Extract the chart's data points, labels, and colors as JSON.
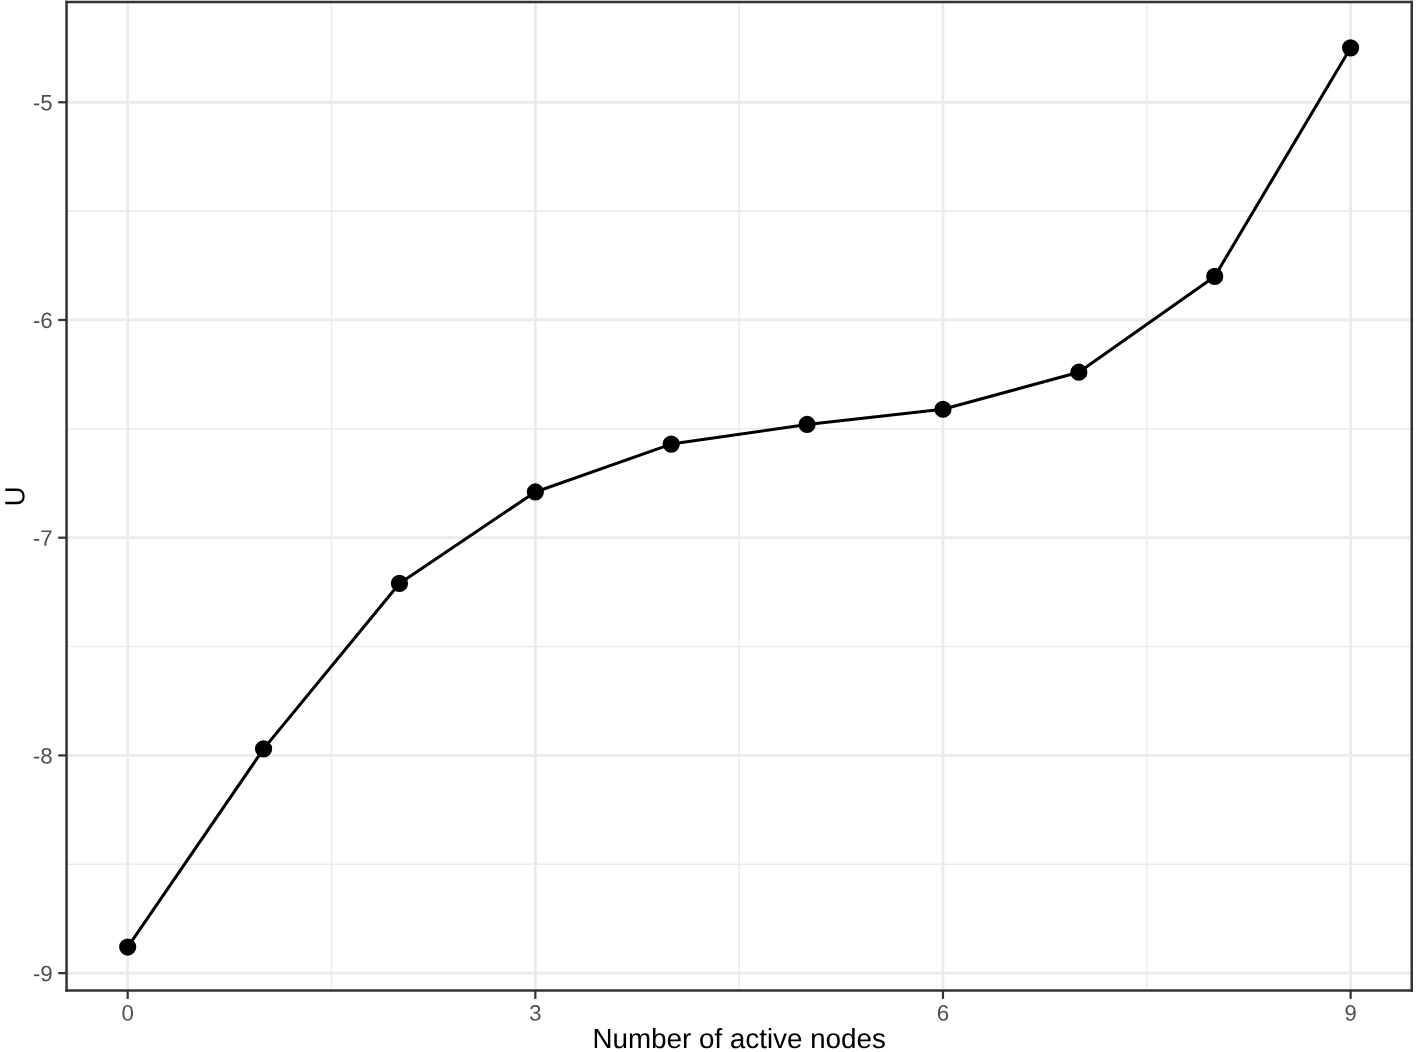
{
  "chart_data": {
    "type": "line",
    "xlabel": "Number of active nodes",
    "ylabel": "U",
    "x": [
      0,
      1,
      2,
      3,
      4,
      5,
      6,
      7,
      8,
      9
    ],
    "series": [
      {
        "color": "#000000",
        "values": [
          -8.88,
          -7.97,
          -7.21,
          -6.79,
          -6.57,
          -6.48,
          -6.41,
          -6.24,
          -5.8,
          -4.75
        ]
      }
    ],
    "xlim": [
      -0.45,
      9.45
    ],
    "xticks": [
      0,
      3,
      6,
      9
    ],
    "ylim": [
      -9.08,
      -4.54
    ],
    "yticks": [
      -9,
      -8,
      -7,
      -6,
      -5
    ],
    "grid": true,
    "marker": "circle",
    "line_style": "solid"
  }
}
